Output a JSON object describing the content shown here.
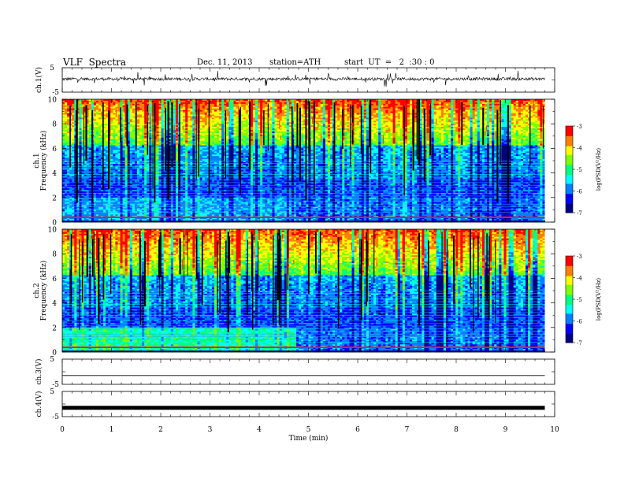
{
  "header": {
    "title": "VLF  Spectra",
    "date": "Dec. 11, 2013",
    "station": "station=ATH",
    "start": "start  UT  =   2  :30 : 0"
  },
  "chart_data": [
    {
      "type": "line",
      "name": "ch1_waveform",
      "ylabel": "ch.1(V)",
      "ylim": [
        -5,
        5
      ],
      "yticks": [
        "5",
        "-5"
      ],
      "xlim": [
        0,
        10
      ],
      "x_end_min": 9.8,
      "baseline_v": 0.4,
      "noise": "bursty small-amplitude spikes"
    },
    {
      "type": "heatmap",
      "name": "ch1_spectrogram",
      "ylabel": "ch.1\nFrequency  (kHz)",
      "ylim": [
        0,
        10
      ],
      "yticks": [
        "0",
        "2",
        "4",
        "6",
        "8",
        "10"
      ],
      "xlim": [
        0,
        9.8
      ],
      "colorbar": {
        "label": "log(PSD(V²/Hz)",
        "range": [
          -7,
          -3
        ],
        "ticks": [
          "-3",
          "-4",
          "-5",
          "-6",
          "-7"
        ]
      },
      "description_values": {
        "low_band_red_khz": [
          0.3,
          0.5
        ],
        "transition_time_min": 4.75,
        "high_freq_intensity": "green-yellow-red above 6 kHz"
      }
    },
    {
      "type": "heatmap",
      "name": "ch2_spectrogram",
      "ylabel": "ch.2\nFrequency  (kHz)",
      "ylim": [
        0,
        10
      ],
      "yticks": [
        "0",
        "2",
        "4",
        "6",
        "8",
        "10"
      ],
      "xlim": [
        0,
        9.8
      ],
      "colorbar": {
        "label": "log(PSD(V²/Hz)",
        "range": [
          -7,
          -3
        ],
        "ticks": [
          "-3",
          "-4",
          "-5",
          "-6",
          "-7"
        ]
      },
      "description_values": {
        "transition_time_min": 4.75
      }
    },
    {
      "type": "line",
      "name": "ch3_waveform",
      "ylabel": "ch.3(V)",
      "ylim": [
        -5,
        5
      ],
      "yticks": [
        "5",
        "-5"
      ],
      "xlim": [
        0,
        10
      ],
      "x_end_min": 9.8,
      "baseline_v": -1.5
    },
    {
      "type": "line",
      "name": "ch4_waveform",
      "ylabel": "ch.4(V)",
      "ylim": [
        -5,
        5
      ],
      "yticks": [
        "5",
        "-5"
      ],
      "xlim": [
        0,
        10
      ],
      "x_end_min": 9.8,
      "baseline_v": -1.5
    }
  ],
  "xaxis": {
    "label": "Time  (min)",
    "ticks": [
      "0",
      "1",
      "2",
      "3",
      "4",
      "5",
      "6",
      "7",
      "8",
      "9",
      "10"
    ],
    "range": [
      0,
      10
    ]
  },
  "colors": {
    "colormap": [
      "#000080",
      "#0000ff",
      "#0080ff",
      "#00ffff",
      "#00ff80",
      "#80ff00",
      "#ffff00",
      "#ff8000",
      "#ff0000",
      "#ffffff"
    ]
  }
}
